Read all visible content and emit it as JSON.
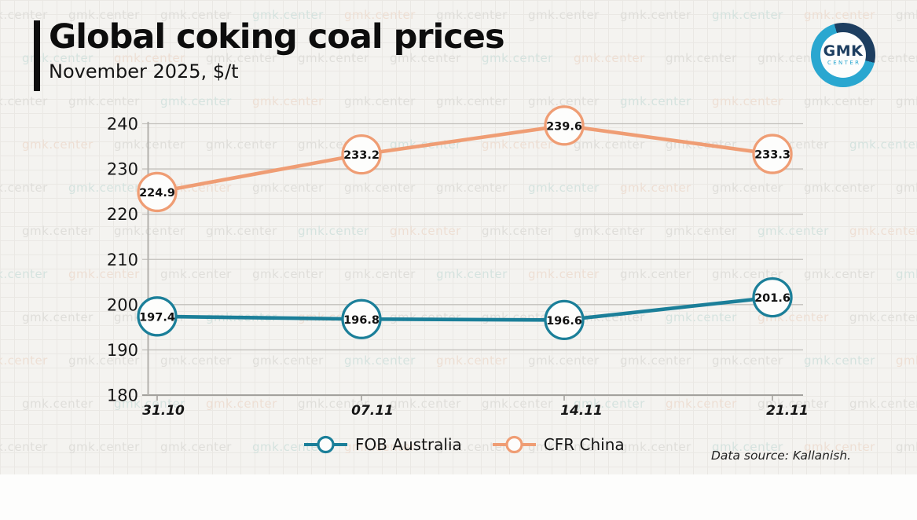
{
  "header": {
    "title": "Global coking coal prices",
    "subtitle": "November 2025, $/t"
  },
  "logo": {
    "line1": "GMK",
    "line2": "CENTER"
  },
  "source_note": "Data source: Kallanish.",
  "watermark": {
    "text": "gmk.center",
    "colors": [
      "#dfdeda",
      "#d5e3df",
      "#eedfd4"
    ]
  },
  "colors": {
    "fob_australia": "#1b7f99",
    "cfr_china": "#ef9d74",
    "gridline": "#c3c1bd",
    "axis": "#a3a19d",
    "marker_fill": "#fdfdfc",
    "accent_black": "#0d0d0d",
    "logo_navy": "#1d3e60",
    "logo_blue": "#2aa7d0"
  },
  "chart_data": {
    "type": "line",
    "title": "Global coking coal prices",
    "subtitle": "November 2025, $/t",
    "x": [
      "31.10",
      "07.11",
      "14.11",
      "21.11"
    ],
    "series": [
      {
        "name": "FOB Australia",
        "color": "#1b7f99",
        "values": [
          197.4,
          196.8,
          196.6,
          201.6
        ]
      },
      {
        "name": "CFR China",
        "color": "#ef9d74",
        "values": [
          224.9,
          233.2,
          239.6,
          233.3
        ]
      }
    ],
    "ylim": [
      180,
      240
    ],
    "yticks": [
      180,
      190,
      200,
      210,
      220,
      230,
      240
    ],
    "grid": "horizontal",
    "legend_position": "bottom",
    "marker": "circle-with-value-label"
  }
}
